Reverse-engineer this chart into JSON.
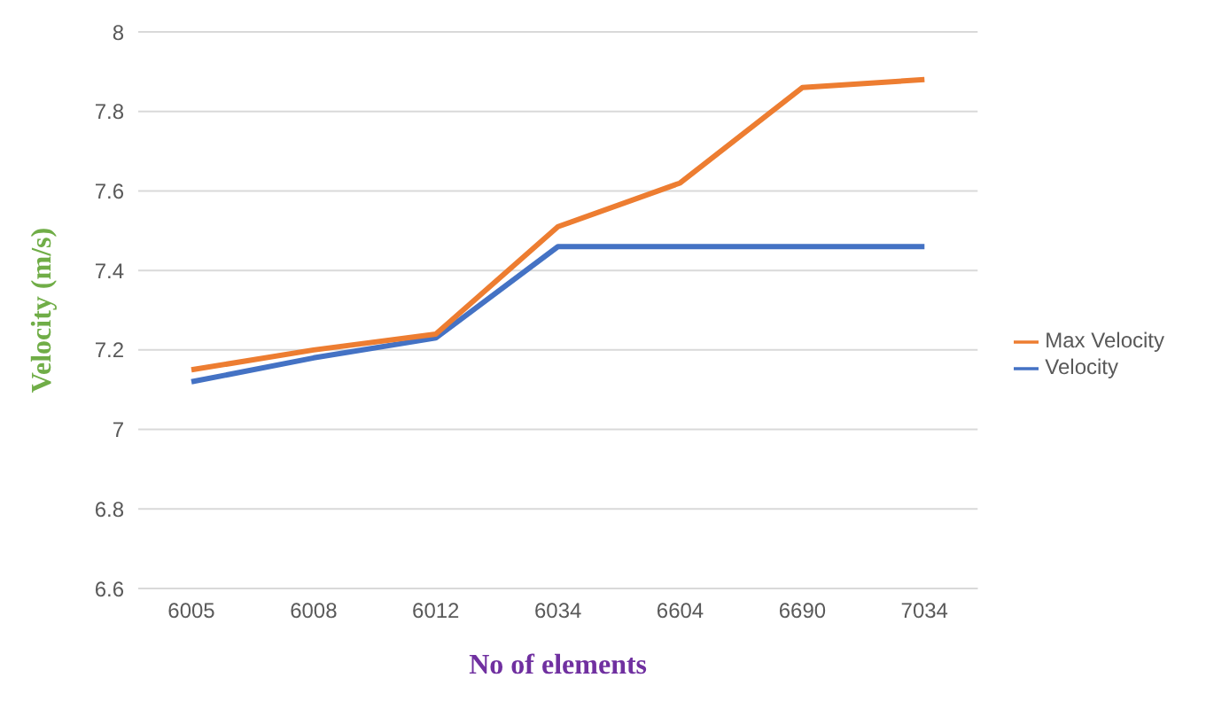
{
  "chart_data": {
    "type": "line",
    "xlabel": "No of elements",
    "ylabel": "Velocity (m/s)",
    "categories": [
      "6005",
      "6008",
      "6012",
      "6034",
      "6604",
      "6690",
      "7034"
    ],
    "series": [
      {
        "name": "Velocity",
        "color": "#4472c4",
        "values": [
          7.12,
          7.18,
          7.23,
          7.46,
          7.46,
          7.46,
          7.46
        ]
      },
      {
        "name": "Max Velocity",
        "color": "#ed7d31",
        "values": [
          7.15,
          7.2,
          7.24,
          7.51,
          7.62,
          7.86,
          7.88
        ]
      }
    ],
    "ylim": [
      6.6,
      8
    ],
    "yticks": [
      6.6,
      6.8,
      7,
      7.2,
      7.4,
      7.6,
      7.8,
      8
    ],
    "grid": "y",
    "legend": "right",
    "marker": "none"
  }
}
